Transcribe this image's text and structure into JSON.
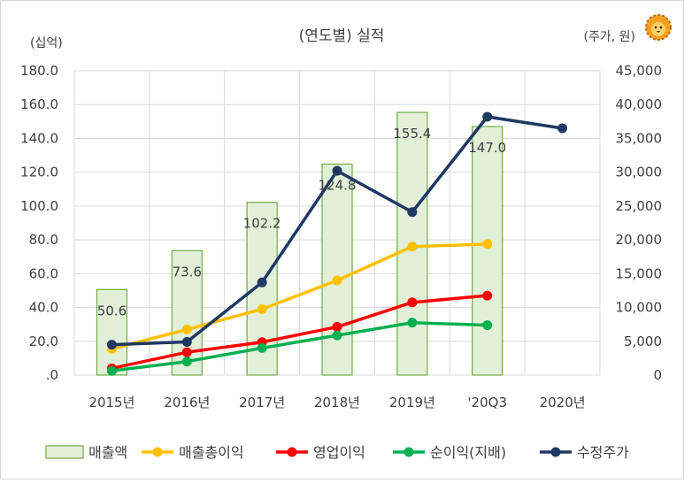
{
  "chart_data": {
    "type": "bar+line",
    "title": "(연도별) 실적",
    "y_left_unit": "(십억)",
    "y_right_unit": "(주가, 원)",
    "categories": [
      "2015년",
      "2016년",
      "2017년",
      "2018년",
      "2019년",
      "'20Q3",
      "2020년"
    ],
    "y_left": {
      "ylim": [
        0,
        180
      ],
      "ticks": [
        0,
        20,
        40,
        60,
        80,
        100,
        120,
        140,
        160,
        180
      ],
      "tick_labels": [
        ".0",
        "20.0",
        "40.0",
        "60.0",
        "80.0",
        "100.0",
        "120.0",
        "140.0",
        "160.0",
        "180.0"
      ]
    },
    "y_right": {
      "ylim": [
        0,
        45000
      ],
      "ticks": [
        0,
        5000,
        10000,
        15000,
        20000,
        25000,
        30000,
        35000,
        40000,
        45000
      ],
      "tick_labels": [
        "0",
        "5,000",
        "10,000",
        "15,000",
        "20,000",
        "25,000",
        "30,000",
        "35,000",
        "40,000",
        "45,000"
      ]
    },
    "grid": true,
    "legend_position": "bottom",
    "bars": {
      "name": "매출액",
      "values": [
        50.6,
        73.6,
        102.2,
        124.8,
        155.4,
        147.0,
        null
      ],
      "labels": [
        "50.6",
        "73.6",
        "102.2",
        "124.8",
        "155.4",
        "147.0",
        ""
      ],
      "fill": "#e2f0d9",
      "stroke": "#70ad47"
    },
    "series": [
      {
        "name": "매출총이익",
        "axis": "left",
        "color": "#ffc000",
        "values": [
          15.5,
          27.0,
          39.0,
          56.0,
          76.0,
          77.5,
          null
        ]
      },
      {
        "name": "영업이익",
        "axis": "left",
        "color": "#ff0000",
        "values": [
          4.0,
          13.5,
          19.5,
          28.5,
          43.0,
          47.0,
          null
        ]
      },
      {
        "name": "순이익(지배)",
        "axis": "left",
        "color": "#00b050",
        "values": [
          2.5,
          8.0,
          16.0,
          23.5,
          31.0,
          29.5,
          null
        ]
      },
      {
        "name": "수정주가",
        "axis": "right",
        "color": "#1f3864",
        "values": [
          4500,
          4900,
          13700,
          30200,
          24100,
          38200,
          36500
        ]
      }
    ]
  },
  "logo_icon": "lion-head-icon"
}
